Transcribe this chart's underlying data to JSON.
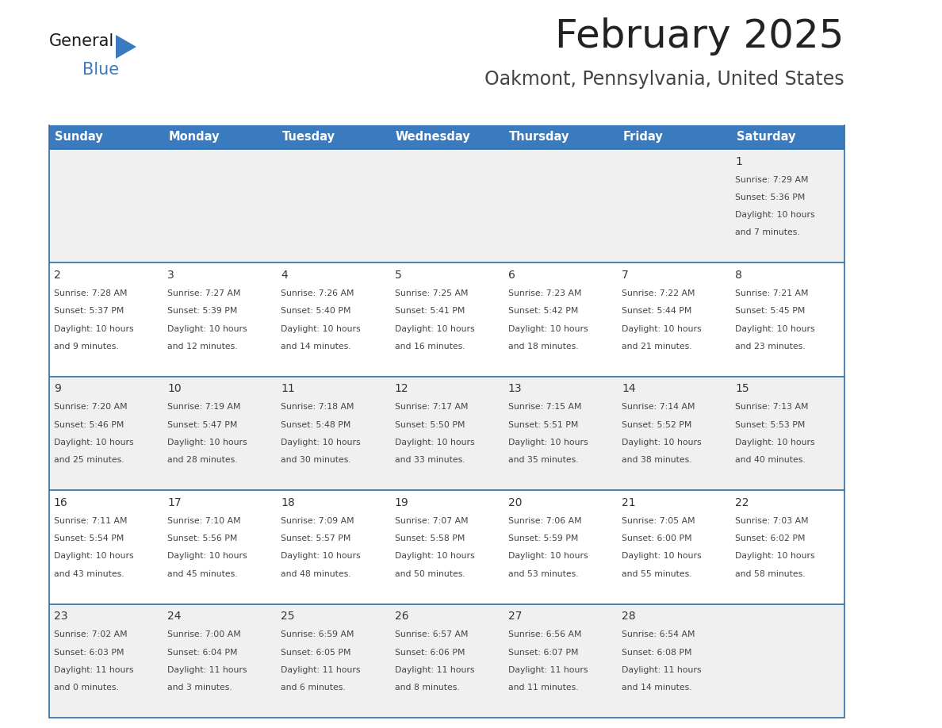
{
  "title": "February 2025",
  "subtitle": "Oakmont, Pennsylvania, United States",
  "header_bg": "#3a7bbf",
  "header_text": "#ffffff",
  "cell_bg_odd": "#f0f0f0",
  "cell_bg_even": "#ffffff",
  "border_color": "#2e6da4",
  "title_color": "#222222",
  "subtitle_color": "#444444",
  "day_number_color": "#333333",
  "cell_text_color": "#444444",
  "logo_general_color": "#1a1a1a",
  "logo_blue_color": "#3a7bbf",
  "logo_triangle_color": "#3a7bbf",
  "day_headers": [
    "Sunday",
    "Monday",
    "Tuesday",
    "Wednesday",
    "Thursday",
    "Friday",
    "Saturday"
  ],
  "calendar": [
    [
      null,
      null,
      null,
      null,
      null,
      null,
      {
        "day": "1",
        "sunrise": "7:29 AM",
        "sunset": "5:36 PM",
        "daylight": "10 hours",
        "daylight2": "and 7 minutes."
      }
    ],
    [
      {
        "day": "2",
        "sunrise": "7:28 AM",
        "sunset": "5:37 PM",
        "daylight": "10 hours",
        "daylight2": "and 9 minutes."
      },
      {
        "day": "3",
        "sunrise": "7:27 AM",
        "sunset": "5:39 PM",
        "daylight": "10 hours",
        "daylight2": "and 12 minutes."
      },
      {
        "day": "4",
        "sunrise": "7:26 AM",
        "sunset": "5:40 PM",
        "daylight": "10 hours",
        "daylight2": "and 14 minutes."
      },
      {
        "day": "5",
        "sunrise": "7:25 AM",
        "sunset": "5:41 PM",
        "daylight": "10 hours",
        "daylight2": "and 16 minutes."
      },
      {
        "day": "6",
        "sunrise": "7:23 AM",
        "sunset": "5:42 PM",
        "daylight": "10 hours",
        "daylight2": "and 18 minutes."
      },
      {
        "day": "7",
        "sunrise": "7:22 AM",
        "sunset": "5:44 PM",
        "daylight": "10 hours",
        "daylight2": "and 21 minutes."
      },
      {
        "day": "8",
        "sunrise": "7:21 AM",
        "sunset": "5:45 PM",
        "daylight": "10 hours",
        "daylight2": "and 23 minutes."
      }
    ],
    [
      {
        "day": "9",
        "sunrise": "7:20 AM",
        "sunset": "5:46 PM",
        "daylight": "10 hours",
        "daylight2": "and 25 minutes."
      },
      {
        "day": "10",
        "sunrise": "7:19 AM",
        "sunset": "5:47 PM",
        "daylight": "10 hours",
        "daylight2": "and 28 minutes."
      },
      {
        "day": "11",
        "sunrise": "7:18 AM",
        "sunset": "5:48 PM",
        "daylight": "10 hours",
        "daylight2": "and 30 minutes."
      },
      {
        "day": "12",
        "sunrise": "7:17 AM",
        "sunset": "5:50 PM",
        "daylight": "10 hours",
        "daylight2": "and 33 minutes."
      },
      {
        "day": "13",
        "sunrise": "7:15 AM",
        "sunset": "5:51 PM",
        "daylight": "10 hours",
        "daylight2": "and 35 minutes."
      },
      {
        "day": "14",
        "sunrise": "7:14 AM",
        "sunset": "5:52 PM",
        "daylight": "10 hours",
        "daylight2": "and 38 minutes."
      },
      {
        "day": "15",
        "sunrise": "7:13 AM",
        "sunset": "5:53 PM",
        "daylight": "10 hours",
        "daylight2": "and 40 minutes."
      }
    ],
    [
      {
        "day": "16",
        "sunrise": "7:11 AM",
        "sunset": "5:54 PM",
        "daylight": "10 hours",
        "daylight2": "and 43 minutes."
      },
      {
        "day": "17",
        "sunrise": "7:10 AM",
        "sunset": "5:56 PM",
        "daylight": "10 hours",
        "daylight2": "and 45 minutes."
      },
      {
        "day": "18",
        "sunrise": "7:09 AM",
        "sunset": "5:57 PM",
        "daylight": "10 hours",
        "daylight2": "and 48 minutes."
      },
      {
        "day": "19",
        "sunrise": "7:07 AM",
        "sunset": "5:58 PM",
        "daylight": "10 hours",
        "daylight2": "and 50 minutes."
      },
      {
        "day": "20",
        "sunrise": "7:06 AM",
        "sunset": "5:59 PM",
        "daylight": "10 hours",
        "daylight2": "and 53 minutes."
      },
      {
        "day": "21",
        "sunrise": "7:05 AM",
        "sunset": "6:00 PM",
        "daylight": "10 hours",
        "daylight2": "and 55 minutes."
      },
      {
        "day": "22",
        "sunrise": "7:03 AM",
        "sunset": "6:02 PM",
        "daylight": "10 hours",
        "daylight2": "and 58 minutes."
      }
    ],
    [
      {
        "day": "23",
        "sunrise": "7:02 AM",
        "sunset": "6:03 PM",
        "daylight": "11 hours",
        "daylight2": "and 0 minutes."
      },
      {
        "day": "24",
        "sunrise": "7:00 AM",
        "sunset": "6:04 PM",
        "daylight": "11 hours",
        "daylight2": "and 3 minutes."
      },
      {
        "day": "25",
        "sunrise": "6:59 AM",
        "sunset": "6:05 PM",
        "daylight": "11 hours",
        "daylight2": "and 6 minutes."
      },
      {
        "day": "26",
        "sunrise": "6:57 AM",
        "sunset": "6:06 PM",
        "daylight": "11 hours",
        "daylight2": "and 8 minutes."
      },
      {
        "day": "27",
        "sunrise": "6:56 AM",
        "sunset": "6:07 PM",
        "daylight": "11 hours",
        "daylight2": "and 11 minutes."
      },
      {
        "day": "28",
        "sunrise": "6:54 AM",
        "sunset": "6:08 PM",
        "daylight": "11 hours",
        "daylight2": "and 14 minutes."
      },
      null
    ]
  ]
}
